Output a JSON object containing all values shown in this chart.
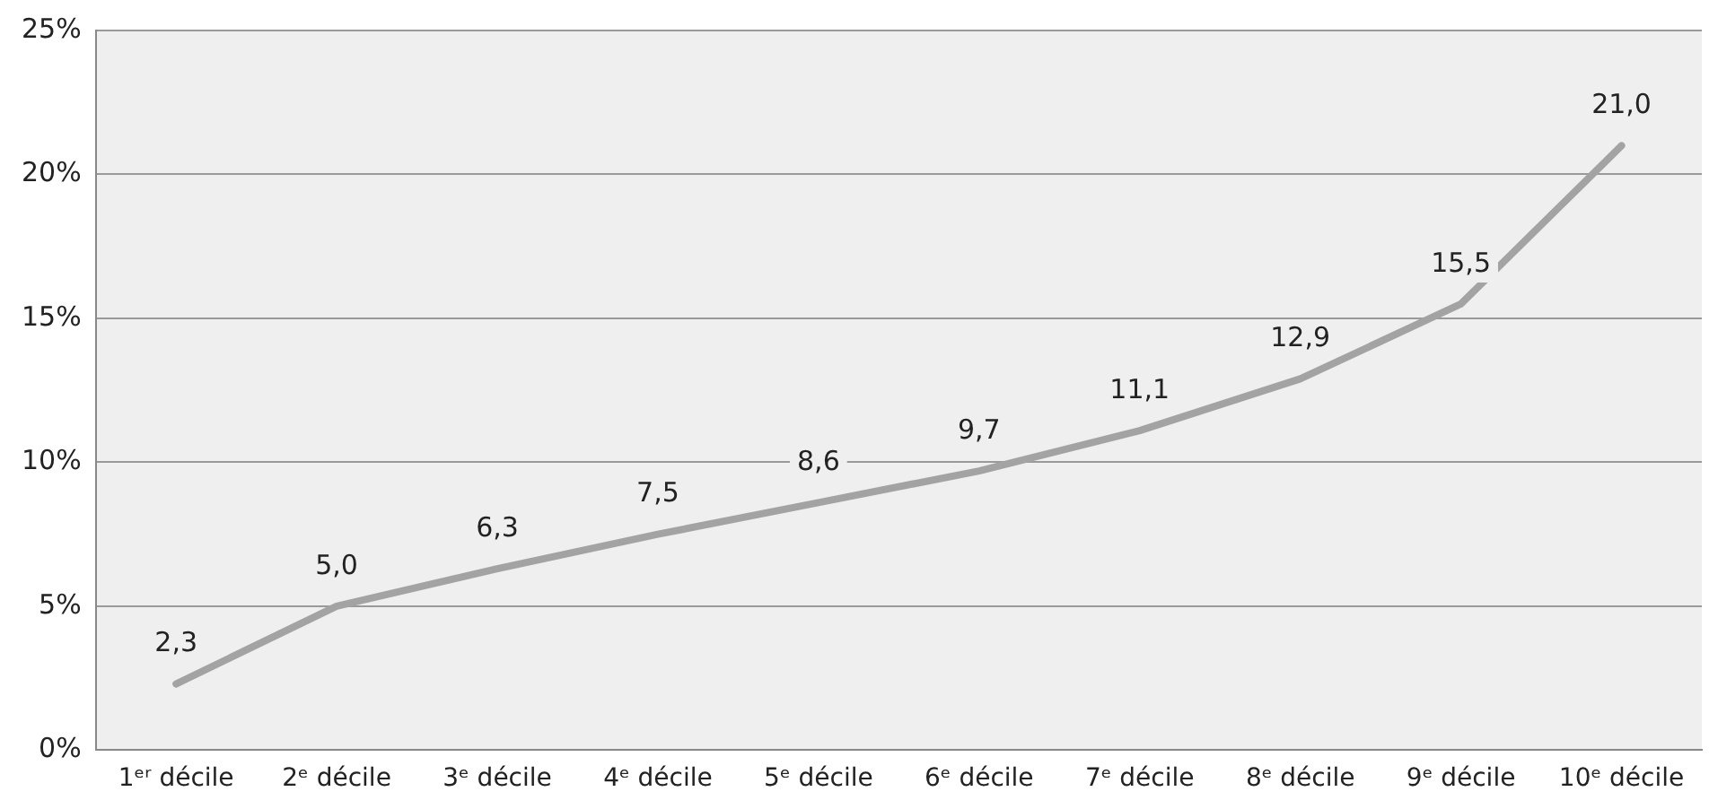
{
  "chart_data": {
    "type": "line",
    "categories": [
      "1ᵉʳ décile",
      "2ᵉ décile",
      "3ᵉ décile",
      "4ᵉ décile",
      "5ᵉ décile",
      "6ᵉ décile",
      "7ᵉ décile",
      "8ᵉ décile",
      "9ᵉ décile",
      "10ᵉ décile"
    ],
    "series": [
      {
        "color": "#a3a3a3",
        "values": [
          2.3,
          5.0,
          6.3,
          7.5,
          8.6,
          9.7,
          11.1,
          12.9,
          15.5,
          21.0
        ],
        "value_labels": [
          "2,3",
          "5,0",
          "6,3",
          "7,5",
          "8,6",
          "9,7",
          "11,1",
          "12,9",
          "15,5",
          "21,0"
        ]
      }
    ],
    "ylim": [
      0,
      25
    ],
    "yticks": [
      {
        "value": 0,
        "label": "0%"
      },
      {
        "value": 5,
        "label": "5%"
      },
      {
        "value": 10,
        "label": "10%"
      },
      {
        "value": 15,
        "label": "15%"
      },
      {
        "value": 20,
        "label": "20%"
      },
      {
        "value": 25,
        "label": "25%"
      }
    ],
    "grid": "y",
    "legend": false,
    "marker": "none",
    "line_style": "solid"
  }
}
